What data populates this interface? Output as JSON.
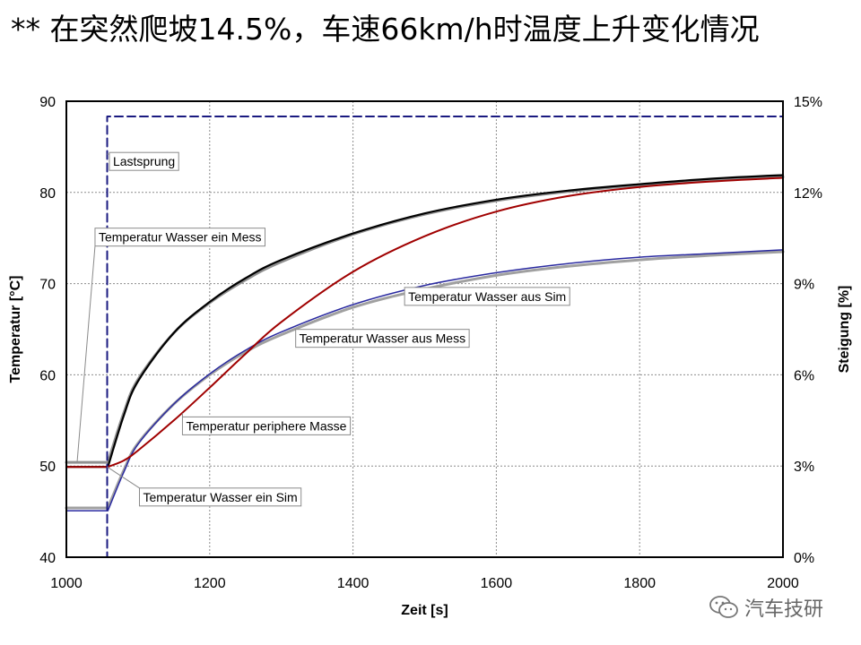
{
  "slide": {
    "title": "**  在突然爬坡14.5%，车速66km/h时温度上升变化情况"
  },
  "watermark": {
    "text": "汽车技研",
    "icon": "wechat-icon"
  },
  "chart_data": {
    "type": "line",
    "xlabel": "Zeit [s]",
    "ylabel_left": "Temperatur [°C]",
    "ylabel_right": "Steigung [%]",
    "xlim": [
      1000,
      2000
    ],
    "ylim_left": [
      40,
      90
    ],
    "ylim_right": [
      0,
      15
    ],
    "x_ticks": [
      "1000",
      "1200",
      "1400",
      "1600",
      "1800",
      "2000"
    ],
    "y_ticks_left": [
      "40",
      "50",
      "60",
      "70",
      "80",
      "90"
    ],
    "y_ticks_right": [
      "0%",
      "3%",
      "6%",
      "9%",
      "12%",
      "15%"
    ],
    "grid": true,
    "series": [
      {
        "name": "Temperatur Wasser ein Mess",
        "axis": "left",
        "color": "#909090",
        "width": 3,
        "x": [
          1000,
          1058,
          1080,
          1100,
          1150,
          1200,
          1250,
          1300,
          1400,
          1500,
          1600,
          1700,
          1800,
          1900,
          2000
        ],
        "y": [
          50.4,
          50.4,
          55.8,
          59.5,
          64.6,
          67.9,
          70.4,
          72.4,
          75.4,
          77.6,
          79.1,
          80.1,
          80.8,
          81.3,
          81.7
        ]
      },
      {
        "name": "Temperatur Wasser ein Sim",
        "axis": "left",
        "color": "#000000",
        "width": 2.2,
        "x": [
          1000,
          1058,
          1080,
          1100,
          1150,
          1200,
          1250,
          1300,
          1400,
          1500,
          1600,
          1700,
          1800,
          1900,
          2000
        ],
        "y": [
          49.9,
          49.9,
          55.5,
          59.3,
          64.6,
          68.0,
          70.6,
          72.6,
          75.5,
          77.7,
          79.2,
          80.2,
          80.9,
          81.5,
          81.9
        ]
      },
      {
        "name": "Temperatur Wasser aus Mess",
        "axis": "left",
        "color": "#a0a0a0",
        "width": 3,
        "x": [
          1000,
          1058,
          1080,
          1100,
          1150,
          1200,
          1250,
          1300,
          1400,
          1500,
          1600,
          1700,
          1800,
          1900,
          2000
        ],
        "y": [
          45.4,
          45.4,
          49.5,
          52.5,
          56.8,
          60.0,
          62.5,
          64.4,
          67.4,
          69.4,
          70.9,
          71.9,
          72.6,
          73.1,
          73.5
        ]
      },
      {
        "name": "Temperatur Wasser aus Sim",
        "axis": "left",
        "color": "#2a2aa0",
        "width": 1.5,
        "x": [
          1000,
          1058,
          1080,
          1100,
          1150,
          1200,
          1250,
          1300,
          1400,
          1500,
          1600,
          1700,
          1800,
          1900,
          2000
        ],
        "y": [
          45.1,
          45.1,
          49.3,
          52.4,
          56.8,
          60.1,
          62.7,
          64.7,
          67.7,
          69.8,
          71.2,
          72.2,
          72.9,
          73.3,
          73.7
        ]
      },
      {
        "name": "Temperatur periphere Masse",
        "axis": "left",
        "color": "#a00000",
        "width": 2,
        "x": [
          1000,
          1058,
          1080,
          1100,
          1150,
          1200,
          1250,
          1300,
          1400,
          1500,
          1600,
          1700,
          1800,
          1900,
          2000
        ],
        "y": [
          49.9,
          49.9,
          50.6,
          51.7,
          55.0,
          58.6,
          62.3,
          65.8,
          71.3,
          75.2,
          77.9,
          79.6,
          80.6,
          81.2,
          81.6
        ]
      },
      {
        "name": "Lastsprung",
        "axis": "right",
        "color": "#1a1a80",
        "width": 2,
        "dash": "9 5",
        "x": [
          1000,
          1057,
          1057,
          2000
        ],
        "y": [
          0,
          0,
          14.5,
          14.5
        ]
      }
    ],
    "annotations": [
      {
        "text": "Lastsprung",
        "series": "Lastsprung",
        "label_x": 1060,
        "label_y": 83.4,
        "anchor_x": 1057,
        "anchor_y": 84.2
      },
      {
        "text": "Temperatur Wasser ein Mess",
        "series": "Temperatur Wasser ein Mess",
        "label_x": 1040,
        "label_y": 75.1,
        "anchor_x": 1015,
        "anchor_y": 50.4
      },
      {
        "text": "Temperatur Wasser aus Sim",
        "series": "Temperatur Wasser aus Sim",
        "label_x": 1472,
        "label_y": 68.6,
        "anchor_x": 1472,
        "anchor_y": 68.4
      },
      {
        "text": "Temperatur Wasser aus Mess",
        "series": "Temperatur Wasser aus Mess",
        "label_x": 1320,
        "label_y": 64.0,
        "anchor_x": 1320,
        "anchor_y": 64.5
      },
      {
        "text": "Temperatur periphere Masse",
        "series": "Temperatur periphere Masse",
        "label_x": 1162,
        "label_y": 54.4,
        "anchor_x": 1162,
        "anchor_y": 55.8
      },
      {
        "text": "Temperatur Wasser ein Sim",
        "series": "Temperatur Wasser ein Sim",
        "label_x": 1102,
        "label_y": 46.6,
        "anchor_x": 1057,
        "anchor_y": 49.9
      }
    ]
  }
}
